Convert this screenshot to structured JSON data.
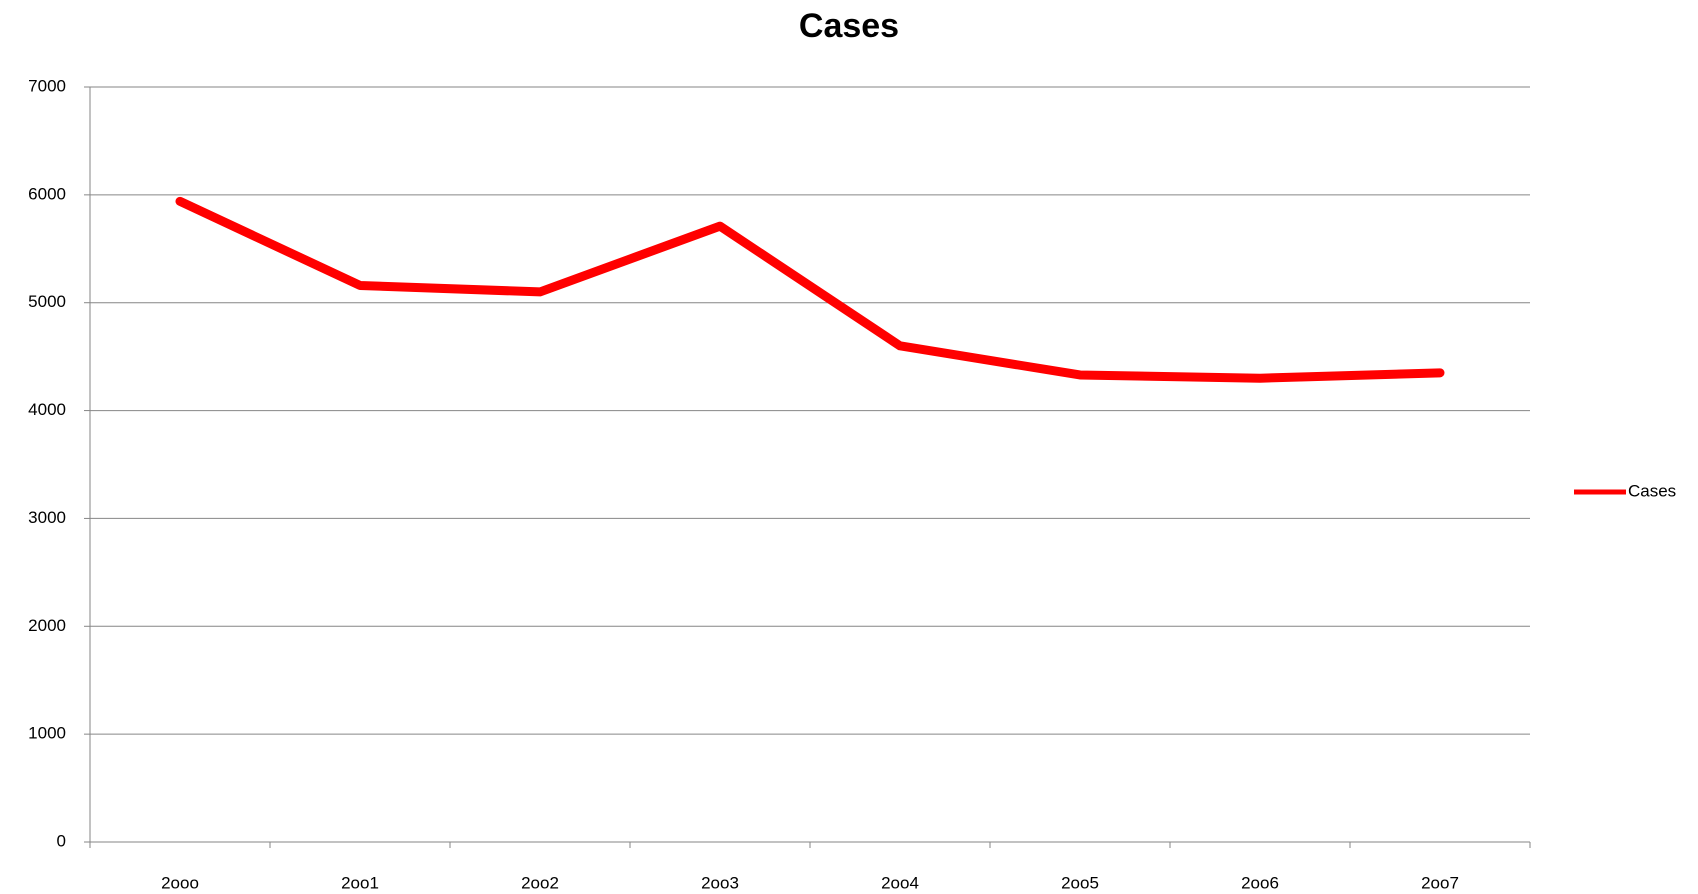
{
  "chart_data": {
    "type": "line",
    "title": "Cases",
    "categories": [
      "2ooo",
      "2oo1",
      "2oo2",
      "2oo3",
      "2oo4",
      "2oo5",
      "2oo6",
      "2oo7"
    ],
    "series": [
      {
        "name": "Cases",
        "color": "#ff0000",
        "values": [
          5940,
          5160,
          5100,
          5710,
          4600,
          4330,
          4300,
          4350
        ]
      }
    ],
    "ylim": [
      0,
      7000
    ],
    "yticks": [
      0,
      1000,
      2000,
      3000,
      4000,
      5000,
      6000,
      7000
    ],
    "grid": true,
    "legend": "right"
  }
}
